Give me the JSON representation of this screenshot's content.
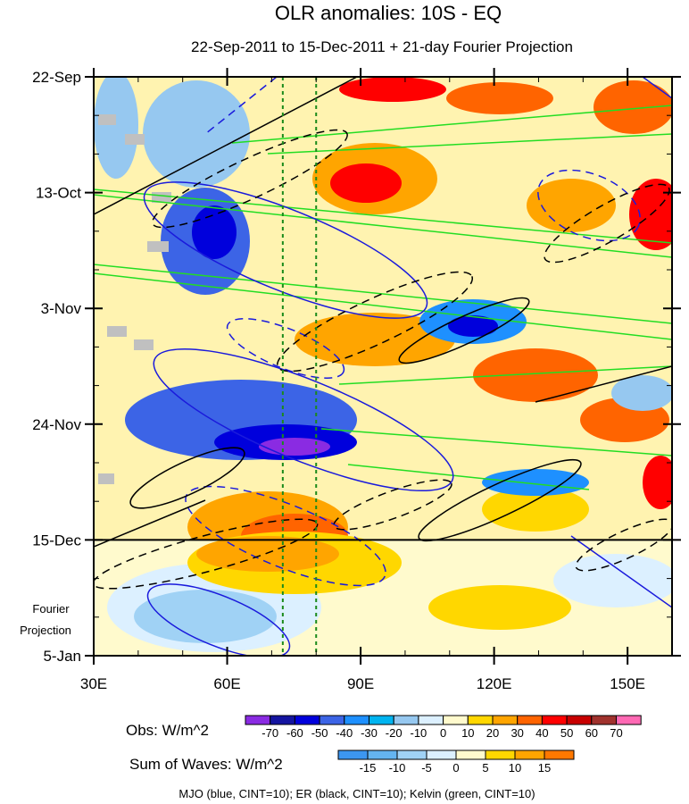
{
  "chart_data": {
    "type": "heatmap",
    "title": "OLR anomalies: 10S - EQ",
    "subtitle": "22-Sep-2011 to 15-Dec-2011 + 21-day Fourier Projection",
    "x_axis": {
      "range": [
        30,
        160
      ],
      "ticks": [
        {
          "value": 30,
          "label": "30E"
        },
        {
          "value": 60,
          "label": "60E"
        },
        {
          "value": 90,
          "label": "90E"
        },
        {
          "value": 120,
          "label": "120E"
        },
        {
          "value": 150,
          "label": "150E"
        }
      ]
    },
    "y_axis": {
      "range_days": [
        0,
        105
      ],
      "ticks": [
        {
          "day": 0,
          "label": "22-Sep"
        },
        {
          "day": 21,
          "label": "13-Oct"
        },
        {
          "day": 42,
          "label": "3-Nov"
        },
        {
          "day": 63,
          "label": "24-Nov"
        },
        {
          "day": 84,
          "label": "15-Dec"
        },
        {
          "day": 105,
          "label": "5-Jan"
        }
      ],
      "projection_start_day": 84,
      "projection_label": [
        "Fourier",
        "Projection"
      ]
    },
    "reference_longitudes": [
      72.5,
      80
    ],
    "obs_colorbar": {
      "label": "Obs: W/m^2",
      "levels": [
        -70,
        -60,
        -50,
        -40,
        -30,
        -20,
        -10,
        0,
        10,
        20,
        30,
        40,
        50,
        60,
        70
      ],
      "colors": [
        "#8a2be2",
        "#1414a0",
        "#0000dc",
        "#3c64e6",
        "#1e90ff",
        "#00b4f0",
        "#96c8f0",
        "#dcf0ff",
        "#fffacd",
        "#ffd700",
        "#ffa500",
        "#ff6400",
        "#ff0000",
        "#c80000",
        "#a0322d",
        "#ff69b4"
      ]
    },
    "waves_colorbar": {
      "label": "Sum of Waves: W/m^2",
      "levels": [
        -15,
        -10,
        -5,
        0,
        5,
        10,
        15
      ],
      "colors": [
        "#3c96f0",
        "#64b4f0",
        "#a0d2f5",
        "#dcf0ff",
        "#fffacd",
        "#ffd700",
        "#ffa500",
        "#ff7800"
      ]
    },
    "contour_legend": "MJO (blue, CINT=10); ER (black, CINT=10); Kelvin (green, CINT=10)",
    "wave_colors": {
      "mjo": "#1a1adc",
      "er": "#000000",
      "kelvin": "#22dd22"
    }
  }
}
